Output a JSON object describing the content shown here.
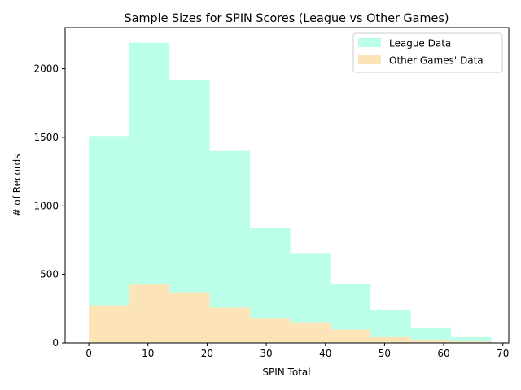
{
  "chart_data": {
    "type": "histogram",
    "title": "Sample Sizes for SPIN Scores (League vs Other Games)",
    "xlabel": "SPIN Total",
    "ylabel": "# of Records",
    "xlim": [
      -4,
      71
    ],
    "ylim": [
      0,
      2300
    ],
    "xticks": [
      0,
      10,
      20,
      30,
      40,
      50,
      60,
      70
    ],
    "yticks": [
      0,
      500,
      1000,
      1500,
      2000
    ],
    "bin_edges": [
      0,
      6.8,
      13.6,
      20.4,
      27.2,
      34.0,
      40.8,
      47.6,
      54.4,
      61.2,
      68.0
    ],
    "grid": false,
    "legend_position": "top-right",
    "series": [
      {
        "name": "League Data",
        "color": "#bbffe8",
        "values": [
          1510,
          2190,
          1915,
          1400,
          840,
          655,
          428,
          238,
          108,
          42
        ]
      },
      {
        "name": "Other Games' Data",
        "color": "#fde3b8",
        "values": [
          275,
          425,
          370,
          258,
          182,
          150,
          98,
          42,
          22,
          10
        ]
      }
    ]
  }
}
